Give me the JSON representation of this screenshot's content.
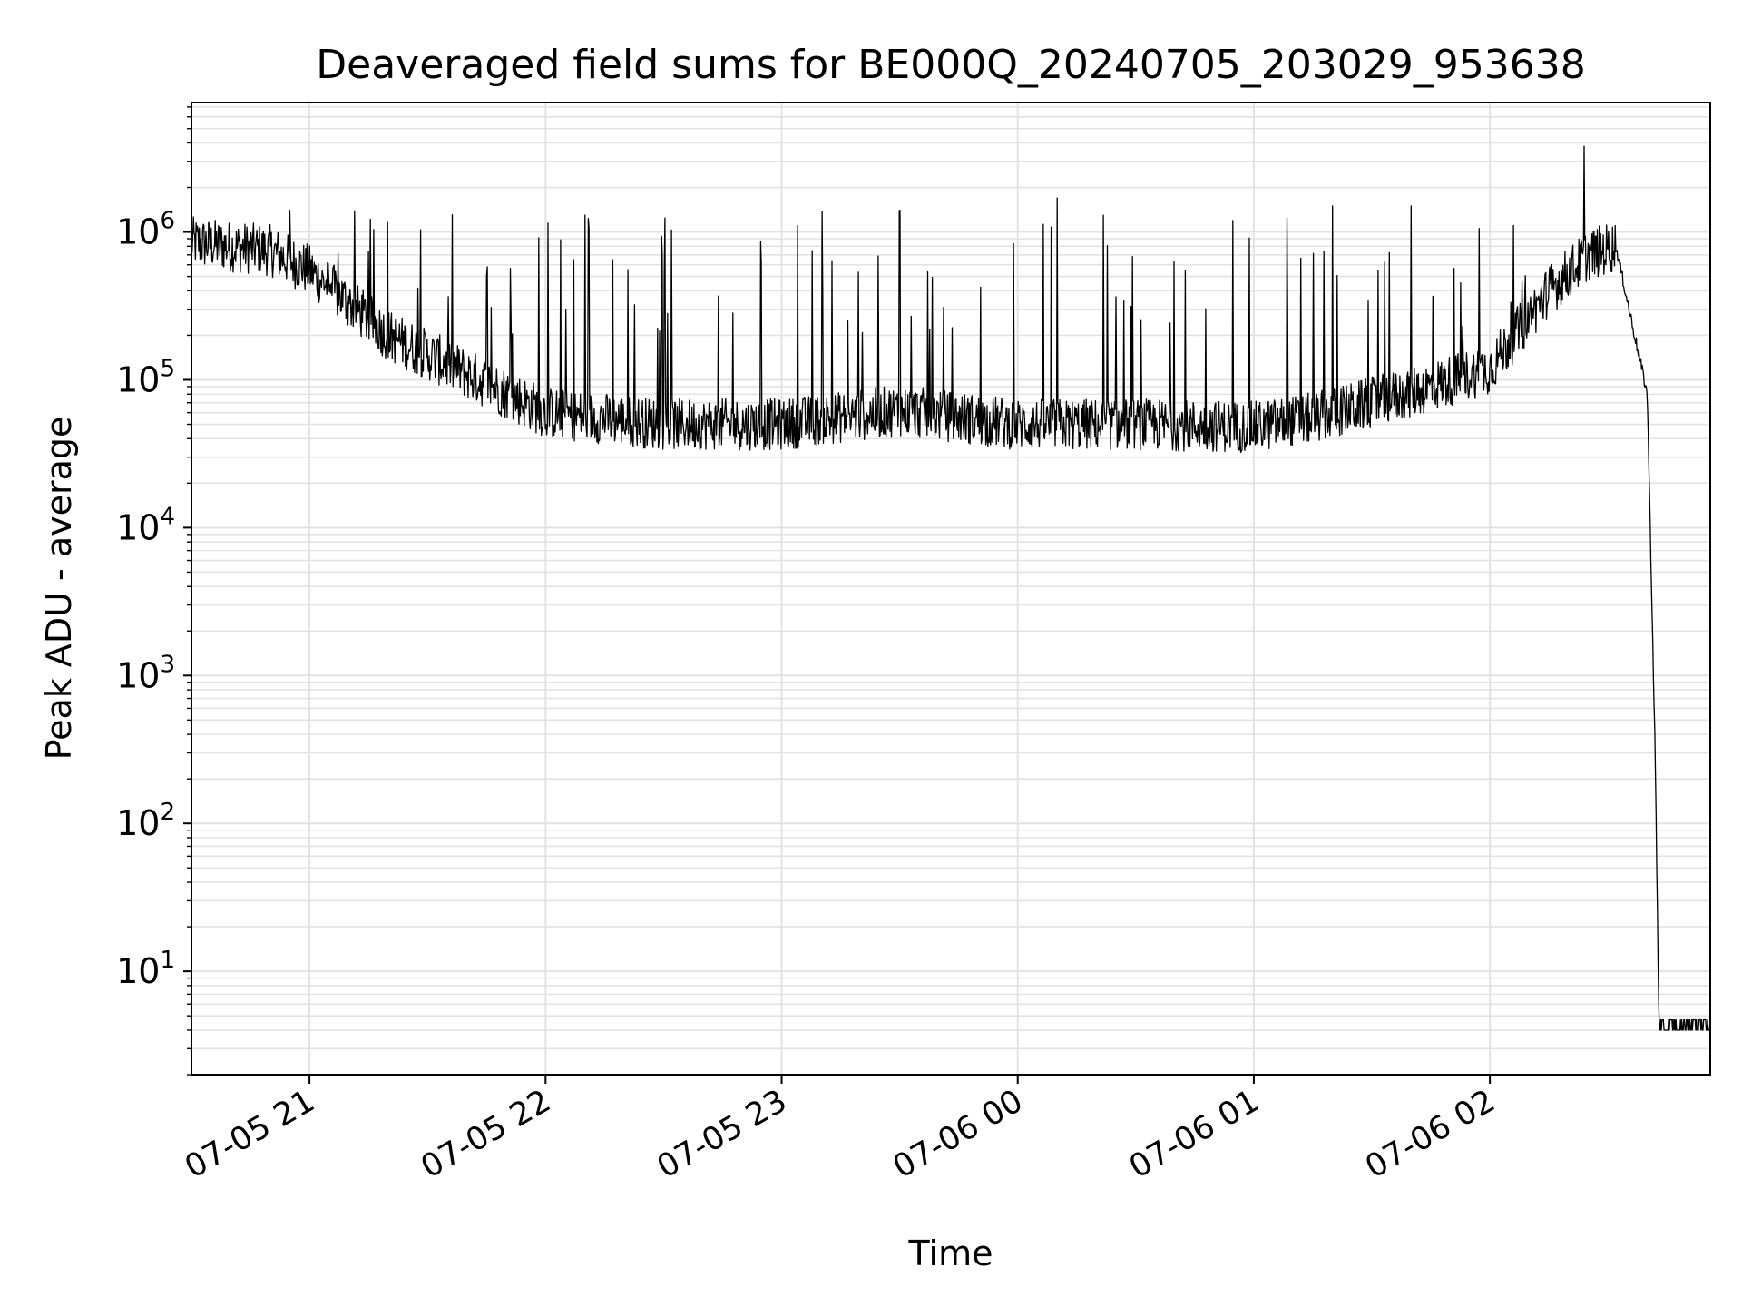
{
  "chart_data": {
    "type": "line",
    "title": "Deaveraged field sums for BE000Q_20240705_203029_953638",
    "xlabel": "Time",
    "ylabel": "Peak ADU - average",
    "y_scale": "log",
    "grid": true,
    "grid_minor": true,
    "line_color": "#000000",
    "grid_color": "#e3e3e3",
    "xlim": [
      "07-05 20:30",
      "07-06 02:56"
    ],
    "ylim": [
      2,
      7500000
    ],
    "x_ticks": [
      {
        "label": "07-05 21",
        "time": "07-05 21:00"
      },
      {
        "label": "07-05 22",
        "time": "07-05 22:00"
      },
      {
        "label": "07-05 23",
        "time": "07-05 23:00"
      },
      {
        "label": "07-06 00",
        "time": "07-06 00:00"
      },
      {
        "label": "07-06 01",
        "time": "07-06 01:00"
      },
      {
        "label": "07-06 02",
        "time": "07-06 02:00"
      }
    ],
    "y_ticks": [
      {
        "base": "10",
        "exp": "1",
        "value": 10
      },
      {
        "base": "10",
        "exp": "2",
        "value": 100
      },
      {
        "base": "10",
        "exp": "3",
        "value": 1000
      },
      {
        "base": "10",
        "exp": "4",
        "value": 10000
      },
      {
        "base": "10",
        "exp": "5",
        "value": 100000
      },
      {
        "base": "10",
        "exp": "6",
        "value": 1000000
      }
    ],
    "baseline_envelope": {
      "x": [
        "07-05 20:30",
        "07-05 20:50",
        "07-05 21:00",
        "07-05 21:20",
        "07-05 21:40",
        "07-05 22:00",
        "07-05 22:30",
        "07-05 23:00",
        "07-05 23:30",
        "07-06 00:00",
        "07-06 00:30",
        "07-06 01:00",
        "07-06 01:15",
        "07-06 01:30",
        "07-06 01:45",
        "07-06 02:00",
        "07-06 02:15",
        "07-06 02:25",
        "07-06 02:32",
        "07-06 02:36",
        "07-06 02:40",
        "07-06 02:41",
        "07-06 02:42",
        "07-06 02:43",
        "07-06 02:56"
      ],
      "y": [
        850000,
        750000,
        550000,
        200000,
        110000,
        60000,
        50000,
        50000,
        62000,
        50000,
        50000,
        48000,
        55000,
        70000,
        90000,
        120000,
        400000,
        700000,
        800000,
        250000,
        80000,
        5000,
        300,
        4,
        4
      ]
    },
    "notable_peaks": [
      {
        "x": "07-05 20:55",
        "y": 1400000
      },
      {
        "x": "07-05 22:10",
        "y": 1300000
      },
      {
        "x": "07-05 23:30",
        "y": 1400000
      },
      {
        "x": "07-06 00:10",
        "y": 1700000
      },
      {
        "x": "07-06 01:20",
        "y": 1500000
      },
      {
        "x": "07-06 01:40",
        "y": 1500000
      },
      {
        "x": "07-06 02:24",
        "y": 3800000
      }
    ]
  }
}
